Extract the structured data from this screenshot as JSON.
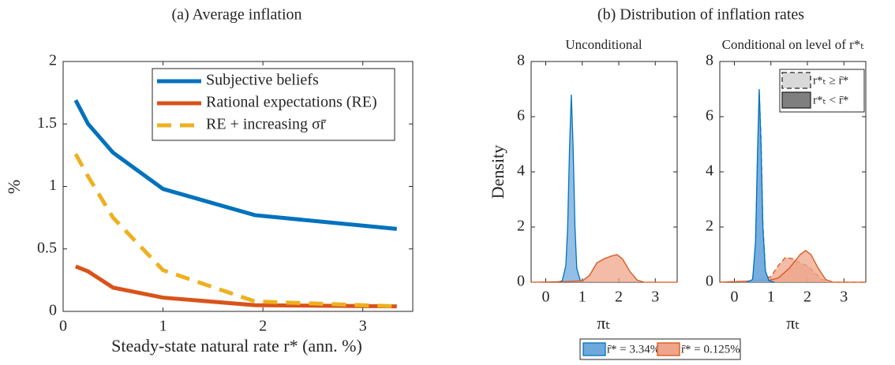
{
  "chart_data": [
    {
      "type": "line",
      "title": "(a) Average inflation",
      "xlabel": "Steady-state natural rate r* (ann. %)",
      "ylabel": "%",
      "x": [
        0.125,
        0.25,
        0.5,
        1,
        1.92,
        3.34
      ],
      "series": [
        {
          "name": "Subjective beliefs",
          "color": "#0072bd",
          "style": "solid",
          "values": [
            1.69,
            1.5,
            1.27,
            0.98,
            0.77,
            0.66
          ]
        },
        {
          "name": "Rational expectations (RE)",
          "color": "#d95319",
          "style": "solid",
          "values": [
            0.36,
            0.32,
            0.19,
            0.11,
            0.05,
            0.04
          ]
        },
        {
          "name": "RE + increasing σr̄",
          "color": "#edb120",
          "style": "dashed",
          "values": [
            1.26,
            1.08,
            0.75,
            0.33,
            0.08,
            0.04
          ]
        }
      ],
      "xlim": [
        0,
        3.5
      ],
      "ylim": [
        0,
        2
      ],
      "xticks": [
        0,
        1,
        2,
        3
      ],
      "yticks": [
        0,
        0.5,
        1,
        1.5,
        2
      ],
      "legend": "upper right"
    },
    {
      "type": "density",
      "group_title": "(b) Distribution of inflation rates",
      "title": "Unconditional",
      "xlabel": "πₜ",
      "ylabel": "Density",
      "series": [
        {
          "name": "r̄* = 3.34%",
          "color": "#0072bd",
          "fill": "#6fa8dc",
          "style": "solid",
          "x": [
            0.3,
            0.45,
            0.55,
            0.6,
            0.65,
            0.7,
            0.75,
            0.8,
            0.85,
            0.95,
            1.1
          ],
          "values": [
            0,
            0.05,
            0.6,
            2.0,
            4.8,
            6.8,
            4.9,
            2.0,
            0.5,
            0.05,
            0
          ]
        },
        {
          "name": "r̄* = 0.125%",
          "color": "#d95319",
          "fill": "#eea58a",
          "style": "solid",
          "x": [
            -0.4,
            0.5,
            1.0,
            1.2,
            1.4,
            1.6,
            1.8,
            1.95,
            2.1,
            2.3,
            2.5,
            2.7,
            3.6
          ],
          "values": [
            0,
            0.02,
            0.05,
            0.25,
            0.7,
            0.85,
            0.95,
            1.0,
            0.85,
            0.4,
            0.08,
            0,
            0
          ]
        }
      ],
      "xlim": [
        -0.4,
        3.6
      ],
      "ylim": [
        0,
        8
      ],
      "xticks": [
        0,
        1,
        2,
        3
      ],
      "yticks": [
        0,
        2,
        4,
        6,
        8
      ],
      "legend": "lower center"
    },
    {
      "type": "density",
      "title": "Conditional on level of r*ₜ",
      "xlabel": "πₜ",
      "series": [
        {
          "color": "#d95319",
          "fill": "#eea58a",
          "style": "dashed",
          "x": [
            -0.4,
            0.5,
            1.0,
            1.2,
            1.4,
            1.6,
            1.8,
            2.0,
            2.2,
            2.4,
            2.6,
            3.6
          ],
          "values": [
            0,
            0.05,
            0.2,
            0.6,
            0.9,
            0.85,
            0.7,
            0.6,
            0.35,
            0.1,
            0,
            0
          ]
        },
        {
          "color": "#d95319",
          "fill": "#eea58a",
          "style": "solid",
          "x": [
            -0.4,
            0.5,
            0.9,
            1.2,
            1.5,
            1.8,
            1.95,
            2.1,
            2.3,
            2.5,
            2.7,
            3.6
          ],
          "values": [
            0,
            0.05,
            0.05,
            0.15,
            0.5,
            1.0,
            1.15,
            1.0,
            0.5,
            0.1,
            0,
            0
          ]
        },
        {
          "color": "#0072bd",
          "fill": "#6fa8dc",
          "style": "dashed",
          "x": [
            0.35,
            0.5,
            0.58,
            0.63,
            0.68,
            0.73,
            0.78,
            0.85,
            0.95,
            1.1
          ],
          "values": [
            0,
            0.1,
            1.4,
            4.3,
            6.9,
            5.2,
            2.1,
            0.4,
            0.05,
            0
          ]
        },
        {
          "color": "#0072bd",
          "fill": "#6fa8dc",
          "style": "solid",
          "x": [
            0.35,
            0.5,
            0.58,
            0.63,
            0.68,
            0.73,
            0.78,
            0.85,
            0.95,
            1.1
          ],
          "values": [
            0,
            0.1,
            1.5,
            4.5,
            7.0,
            5.0,
            2.0,
            0.4,
            0.05,
            0
          ]
        }
      ],
      "legend_entries": [
        {
          "label": "r*ₜ ≥ r̄*",
          "color": "#d9d9d9",
          "style": "dashed"
        },
        {
          "label": "r*ₜ < r̄*",
          "color": "#7f7f7f",
          "style": "solid"
        }
      ],
      "xlim": [
        -0.4,
        3.6
      ],
      "ylim": [
        0,
        8
      ],
      "xticks": [
        0,
        1,
        2,
        3
      ],
      "yticks": [
        0,
        2,
        4,
        6,
        8
      ],
      "legend": "upper right"
    }
  ]
}
